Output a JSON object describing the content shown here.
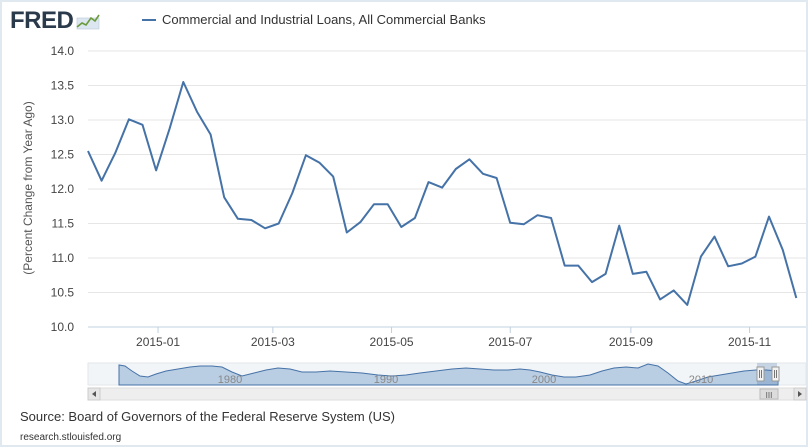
{
  "logo": {
    "text": "FRED"
  },
  "legend": {
    "series_label": "Commercial and Industrial Loans, All Commercial Banks",
    "color": "#4572a7"
  },
  "source": {
    "text": "Source: Board of Governors of the Federal Reserve System (US)"
  },
  "site": {
    "text": "research.stlouisfed.org"
  },
  "navigator": {
    "labels": [
      "1980",
      "1990",
      "2000",
      "2010"
    ],
    "scroll_right_symbol": "III"
  },
  "chart_data": {
    "type": "line",
    "title": "",
    "xlabel": "",
    "ylabel": "(Percent Change from Year Ago)",
    "ylim": [
      10.0,
      14.0
    ],
    "yticks": [
      10.0,
      10.5,
      11.0,
      11.5,
      12.0,
      12.5,
      13.0,
      13.5,
      14.0
    ],
    "grid": true,
    "x_tick_labels": [
      "2015-01",
      "2015-03",
      "2015-05",
      "2015-07",
      "2015-09",
      "2015-11"
    ],
    "x_tick_dates": [
      "2015-01-01",
      "2015-03-01",
      "2015-05-01",
      "2015-07-01",
      "2015-09-01",
      "2015-11-01"
    ],
    "xlim": [
      "2014-11-26",
      "2015-11-30"
    ],
    "series": [
      {
        "name": "Commercial and Industrial Loans, All Commercial Banks",
        "color": "#4572a7",
        "x": [
          "2014-11-26",
          "2014-12-03",
          "2014-12-10",
          "2014-12-17",
          "2014-12-24",
          "2014-12-31",
          "2015-01-07",
          "2015-01-14",
          "2015-01-21",
          "2015-01-28",
          "2015-02-04",
          "2015-02-11",
          "2015-02-18",
          "2015-02-25",
          "2015-03-04",
          "2015-03-11",
          "2015-03-18",
          "2015-03-25",
          "2015-04-01",
          "2015-04-08",
          "2015-04-15",
          "2015-04-22",
          "2015-04-29",
          "2015-05-06",
          "2015-05-13",
          "2015-05-20",
          "2015-05-27",
          "2015-06-03",
          "2015-06-10",
          "2015-06-17",
          "2015-06-24",
          "2015-07-01",
          "2015-07-08",
          "2015-07-15",
          "2015-07-22",
          "2015-07-29",
          "2015-08-05",
          "2015-08-12",
          "2015-08-19",
          "2015-08-26",
          "2015-09-02",
          "2015-09-09",
          "2015-09-16",
          "2015-09-23",
          "2015-09-30",
          "2015-10-07",
          "2015-10-14",
          "2015-10-21",
          "2015-10-28",
          "2015-11-04",
          "2015-11-11",
          "2015-11-18",
          "2015-11-25"
        ],
        "values": [
          12.55,
          12.12,
          12.52,
          13.01,
          12.93,
          12.27,
          12.88,
          13.55,
          13.12,
          12.79,
          11.88,
          11.57,
          11.55,
          11.43,
          11.5,
          11.94,
          12.49,
          12.38,
          12.18,
          11.37,
          11.52,
          11.78,
          11.78,
          11.45,
          11.58,
          12.1,
          12.02,
          12.29,
          12.43,
          12.22,
          12.16,
          11.51,
          11.49,
          11.62,
          11.58,
          10.89,
          10.89,
          10.65,
          10.77,
          11.47,
          10.77,
          10.8,
          10.4,
          10.53,
          10.32,
          11.02,
          11.31,
          10.88,
          10.92,
          11.02,
          11.6,
          11.12,
          10.42
        ]
      }
    ]
  }
}
